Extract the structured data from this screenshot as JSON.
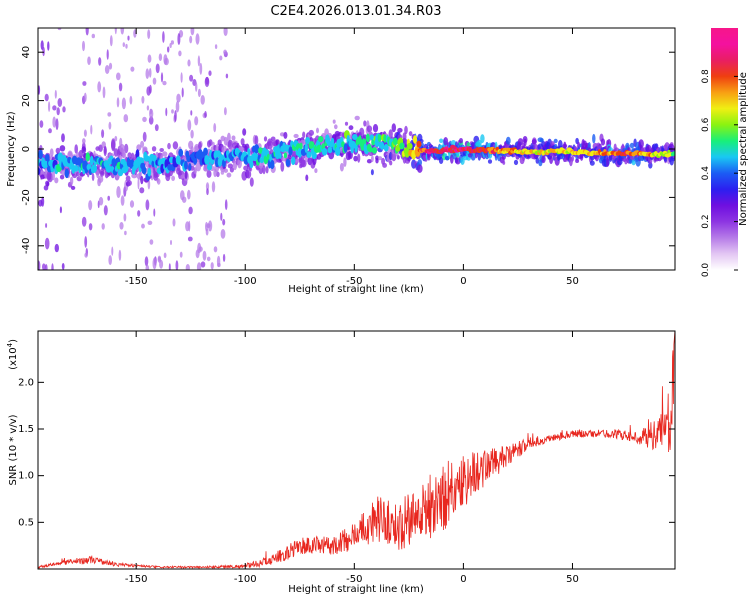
{
  "figure_title": "C2E4.2026.013.01.34.R03",
  "colors": {
    "snr_line": "#e8271f",
    "axis": "#000000",
    "colormap": [
      "#ffffff",
      "#e3c6f3",
      "#b67be8",
      "#8d35e2",
      "#6f0fe0",
      "#2c1ff0",
      "#1b5cf4",
      "#19c8f3",
      "#18ef7a",
      "#8af311",
      "#f0ef13",
      "#f8a013",
      "#ef3f10",
      "#e91e63",
      "#f4119f",
      "#f7168a"
    ]
  },
  "chart_data": [
    {
      "type": "heatmap",
      "title": "",
      "xlabel": "Height of straight line (km)",
      "ylabel": "Frequency (Hz)",
      "xlim": [
        -195,
        97
      ],
      "ylim": [
        -50,
        50
      ],
      "xticks": [
        -150,
        -100,
        -50,
        0,
        50
      ],
      "yticks": [
        -40,
        -20,
        0,
        20,
        40
      ],
      "x_tick_labels": [
        "-150",
        "-100",
        "-50",
        "0",
        "50"
      ],
      "y_tick_labels": [
        "-40",
        "-20",
        "0",
        "20",
        "40"
      ],
      "ridge": {
        "description": "strong coherent band near 0 Hz",
        "points": [
          {
            "x": -195,
            "f": -7,
            "amp": 0.42
          },
          {
            "x": -170,
            "f": -6,
            "amp": 0.45
          },
          {
            "x": -140,
            "f": -7,
            "amp": 0.42
          },
          {
            "x": -110,
            "f": -3,
            "amp": 0.4
          },
          {
            "x": -90,
            "f": -3,
            "amp": 0.45
          },
          {
            "x": -70,
            "f": 1,
            "amp": 0.48
          },
          {
            "x": -50,
            "f": 3,
            "amp": 0.5
          },
          {
            "x": -30,
            "f": 1,
            "amp": 0.55
          },
          {
            "x": -15,
            "f": -1,
            "amp": 0.85
          },
          {
            "x": 0,
            "f": 0,
            "amp": 0.9
          },
          {
            "x": 25,
            "f": -1,
            "amp": 0.7
          },
          {
            "x": 50,
            "f": -1,
            "amp": 0.68
          },
          {
            "x": 75,
            "f": -2,
            "amp": 0.8
          },
          {
            "x": 97,
            "f": -2,
            "amp": 0.6
          }
        ]
      },
      "noise_bands": [
        {
          "x_from": -195,
          "x_to": -183,
          "amp": 0.18
        },
        {
          "x_from": -175,
          "x_to": -108,
          "amp": 0.1
        }
      ],
      "colorbar": {
        "label": "Normalized spectral amplitude",
        "range": [
          0.0,
          1.0
        ],
        "ticks": [
          0.0,
          0.2,
          0.4,
          0.6,
          0.8
        ],
        "tick_labels": [
          "0.0",
          "0.2",
          "0.4",
          "0.6",
          "0.8"
        ]
      }
    },
    {
      "type": "line",
      "title": "",
      "xlabel": "Height of straight line (km)",
      "ylabel": "SNR (10 * v/v)",
      "multiplier_label": "(x10",
      "multiplier_exp": "4",
      "multiplier_close": ")",
      "xlim": [
        -195,
        97
      ],
      "ylim": [
        0,
        2.55
      ],
      "xticks": [
        -150,
        -100,
        -50,
        0,
        50
      ],
      "yticks": [
        0.5,
        1.0,
        1.5,
        2.0
      ],
      "x_tick_labels": [
        "-150",
        "-100",
        "-50",
        "0",
        "50"
      ],
      "y_tick_labels": [
        "0.5",
        "1.0",
        "1.5",
        "2.0"
      ],
      "series": [
        {
          "name": "SNR",
          "x": [
            -195,
            -180,
            -170,
            -160,
            -140,
            -120,
            -100,
            -90,
            -80,
            -75,
            -60,
            -50,
            -40,
            -30,
            -20,
            -10,
            0,
            10,
            20,
            30,
            40,
            50,
            60,
            70,
            80,
            90,
            95,
            97
          ],
          "y": [
            0.02,
            0.08,
            0.1,
            0.05,
            0.02,
            0.02,
            0.03,
            0.08,
            0.18,
            0.25,
            0.25,
            0.35,
            0.55,
            0.45,
            0.6,
            0.75,
            0.95,
            1.1,
            1.2,
            1.35,
            1.4,
            1.45,
            1.45,
            1.45,
            1.4,
            1.45,
            1.6,
            2.4
          ],
          "noise": [
            0.01,
            0.03,
            0.04,
            0.02,
            0.01,
            0.01,
            0.02,
            0.05,
            0.08,
            0.1,
            0.1,
            0.15,
            0.25,
            0.25,
            0.35,
            0.4,
            0.3,
            0.2,
            0.12,
            0.06,
            0.04,
            0.04,
            0.04,
            0.05,
            0.06,
            0.2,
            0.35,
            0.5
          ]
        }
      ]
    }
  ]
}
